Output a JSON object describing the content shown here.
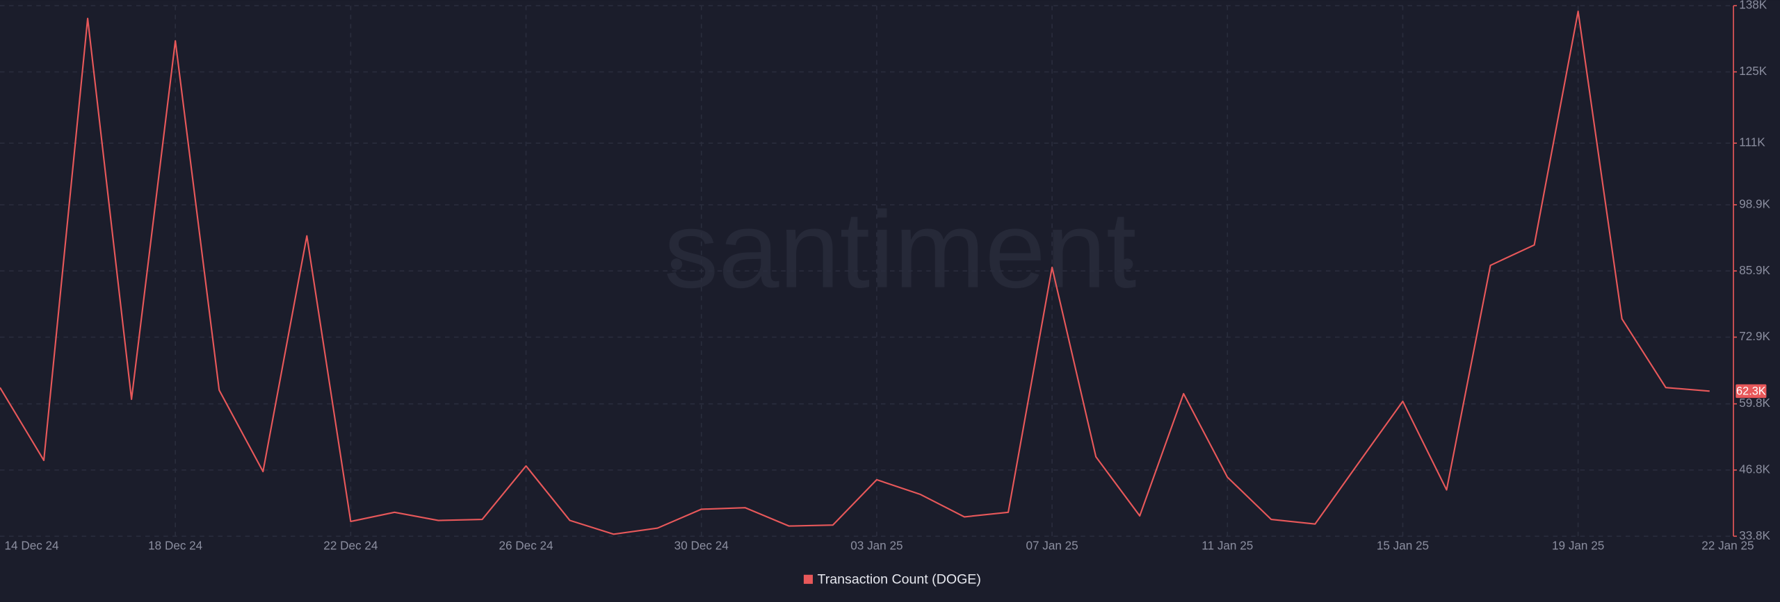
{
  "chart_data": {
    "type": "line",
    "watermark": "santiment",
    "categories": [
      "14 Dec 24",
      null,
      null,
      null,
      "18 Dec 24",
      null,
      null,
      null,
      "22 Dec 24",
      null,
      null,
      null,
      "26 Dec 24",
      null,
      null,
      null,
      "30 Dec 24",
      null,
      null,
      null,
      "03 Jan 25",
      null,
      null,
      null,
      "07 Jan 25",
      null,
      null,
      null,
      "11 Jan 25",
      null,
      null,
      null,
      "15 Jan 25",
      null,
      null,
      null,
      "19 Jan 25",
      null,
      null,
      "22 Jan 25"
    ],
    "series": [
      {
        "name": "Transaction Count (DOGE)",
        "color": "#e8585a",
        "values": [
          63000,
          48700,
          135500,
          60700,
          131100,
          62500,
          46500,
          92800,
          36700,
          38500,
          36900,
          37100,
          47600,
          36900,
          34200,
          35400,
          39100,
          39400,
          35800,
          36000,
          44900,
          42000,
          37600,
          38500,
          86600,
          49400,
          37800,
          61800,
          45400,
          37100,
          36200,
          48300,
          60300,
          42900,
          87000,
          91000,
          136900,
          76500,
          63000,
          62300
        ],
        "last_label": "62.3K"
      }
    ],
    "ylim": [
      33800,
      138000
    ],
    "yticks": [
      {
        "value": 33800,
        "label": "33.8K"
      },
      {
        "value": 46800,
        "label": "46.8K"
      },
      {
        "value": 59800,
        "label": "59.8K"
      },
      {
        "value": 72900,
        "label": "72.9K"
      },
      {
        "value": 85900,
        "label": "85.9K"
      },
      {
        "value": 98900,
        "label": "98.9K"
      },
      {
        "value": 111000,
        "label": "111K"
      },
      {
        "value": 125000,
        "label": "125K"
      },
      {
        "value": 138000,
        "label": "138K"
      }
    ],
    "grid": true
  }
}
